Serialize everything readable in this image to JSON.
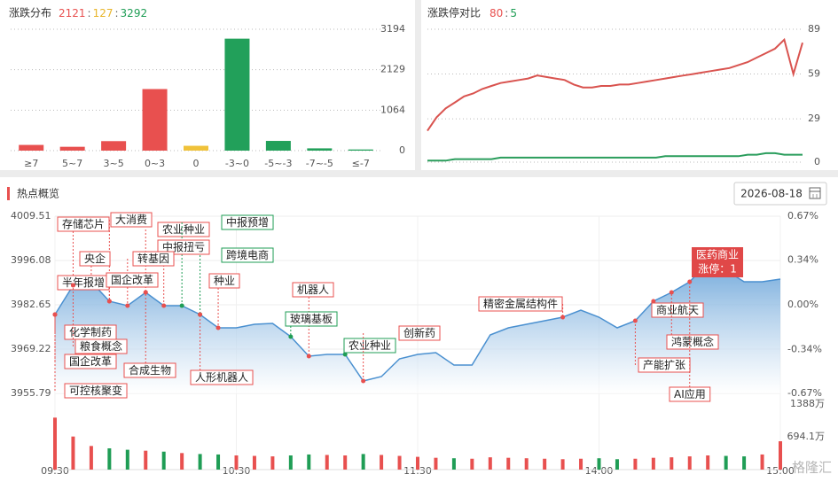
{
  "chart_data": [
    {
      "type": "bar",
      "title": "涨跌分布",
      "summary": [
        {
          "text": "2121",
          "color": "#e8504f"
        },
        {
          "text": "127",
          "color": "#e8b52a"
        },
        {
          "text": "3292",
          "color": "#1f9d55"
        }
      ],
      "separator": ":",
      "categories": [
        "≥7",
        "5~7",
        "3~5",
        "0~3",
        "0",
        "-3~0",
        "-5~-3",
        "-7~-5",
        "≤-7"
      ],
      "values": [
        150,
        101,
        250,
        1620,
        127,
        2946,
        256,
        60,
        30
      ],
      "colors": [
        "#e8504f",
        "#e8504f",
        "#e8504f",
        "#e8504f",
        "#f0c23a",
        "#22a05a",
        "#22a05a",
        "#22a05a",
        "#22a05a"
      ],
      "ylim": [
        0,
        3194
      ],
      "yticks": [
        0,
        1064,
        2129,
        3194
      ],
      "grid": true
    },
    {
      "type": "line",
      "title": "涨跌停对比",
      "summary": [
        {
          "text": "80",
          "color": "#e8504f"
        },
        {
          "text": "5",
          "color": "#1f9d55"
        }
      ],
      "separator": ":",
      "series": [
        {
          "color": "#d9534f",
          "values": [
            21,
            30,
            36,
            40,
            44,
            46,
            49,
            51,
            53,
            54,
            55,
            56,
            58,
            57,
            56,
            55,
            52,
            50,
            50,
            51,
            51,
            52,
            52,
            53,
            54,
            55,
            56,
            57,
            58,
            59,
            60,
            61,
            62,
            63,
            65,
            67,
            70,
            73,
            76,
            82,
            59,
            80
          ]
        },
        {
          "color": "#2a9d5c",
          "values": [
            1,
            1,
            1,
            2,
            2,
            2,
            2,
            2,
            3,
            3,
            3,
            3,
            3,
            3,
            3,
            3,
            3,
            3,
            3,
            3,
            3,
            3,
            3,
            3,
            3,
            3,
            4,
            4,
            4,
            4,
            4,
            4,
            4,
            4,
            4,
            5,
            5,
            6,
            6,
            5,
            5,
            5
          ]
        }
      ],
      "ylim": [
        0,
        89
      ],
      "yticks": [
        0,
        29,
        59,
        89
      ],
      "grid": true
    },
    {
      "type": "intraday",
      "title": "热点概览",
      "date": "2026-08-18",
      "series": [
        {
          "color": "#4a90d0",
          "values": [
            3979.7,
            3988.56,
            3989.63,
            3983.72,
            3982.38,
            3986.41,
            3982.38,
            3982.38,
            3979.7,
            3975.67,
            3975.67,
            3976.74,
            3977.01,
            3972.98,
            3967.07,
            3967.61,
            3967.61,
            3959.55,
            3960.89,
            3966.27,
            3967.61,
            3968.15,
            3964.39,
            3964.39,
            3973.52,
            3975.67,
            3976.74,
            3977.82,
            3978.89,
            3981.04,
            3978.89,
            3975.67,
            3977.82,
            3983.72,
            3986.41,
            3989.63,
            3995.54,
            3993.13,
            3989.63,
            3989.63,
            3990.44
          ]
        }
      ],
      "ylim": [
        3955.79,
        4009.51
      ],
      "yticks": [
        3955.79,
        3969.22,
        3982.65,
        3996.08,
        4009.51
      ],
      "y2lim": [
        -0.67,
        0.67
      ],
      "y2ticks": [
        {
          "value": -0.67,
          "label": "-0.67%"
        },
        {
          "value": -0.34,
          "label": "-0.34%"
        },
        {
          "value": 0,
          "label": "0.00%"
        },
        {
          "value": 0.34,
          "label": "0.34%"
        },
        {
          "value": 0.67,
          "label": "0.67%"
        }
      ],
      "xticks": [
        "09:30",
        "10:30",
        "11:30",
        "14:00",
        "15:00"
      ],
      "up_color": "#e8504f",
      "down_color": "#1f9d55",
      "flat_color": "#888888",
      "volume": {
        "values": [
          1100,
          700,
          500,
          450,
          420,
          400,
          380,
          350,
          330,
          320,
          300,
          290,
          280,
          300,
          320,
          310,
          300,
          330,
          310,
          290,
          270,
          250,
          240,
          230,
          260,
          250,
          240,
          230,
          220,
          230,
          240,
          220,
          230,
          250,
          260,
          280,
          300,
          290,
          280,
          320,
          600
        ],
        "ylim": [
          0,
          1388
        ],
        "yticks": [
          {
            "value": 694.1,
            "label": "694.1万"
          },
          {
            "value": 1388,
            "label": "1388万"
          }
        ]
      },
      "annotations": [
        {
          "label": "存储芯片",
          "color": "#e8504f"
        },
        {
          "label": "大消费",
          "color": "#e8504f"
        },
        {
          "label": "农业种业",
          "color": "#e8504f"
        },
        {
          "label": "中报预增",
          "color": "#1f9d55"
        },
        {
          "label": "中报扭亏",
          "color": "#e8504f"
        },
        {
          "label": "跨境电商",
          "color": "#1f9d55"
        },
        {
          "label": "央企",
          "color": "#e8504f"
        },
        {
          "label": "转基因",
          "color": "#e8504f"
        },
        {
          "label": "半年报增",
          "color": "#e8504f"
        },
        {
          "label": "国企改革",
          "color": "#e8504f"
        },
        {
          "label": "种业",
          "color": "#e8504f"
        },
        {
          "label": "机器人",
          "color": "#e8504f"
        },
        {
          "label": "化学制药",
          "color": "#e8504f"
        },
        {
          "label": "粮食概念",
          "color": "#e8504f"
        },
        {
          "label": "国企改革",
          "color": "#e8504f"
        },
        {
          "label": "可控核聚变",
          "color": "#e8504f"
        },
        {
          "label": "合成生物",
          "color": "#e8504f"
        },
        {
          "label": "人形机器人",
          "color": "#e8504f"
        },
        {
          "label": "玻璃基板",
          "color": "#1f9d55"
        },
        {
          "label": "农业种业",
          "color": "#1f9d55"
        },
        {
          "label": "创新药",
          "color": "#e8504f"
        },
        {
          "label": "精密金属结构件",
          "color": "#e8504f"
        },
        {
          "label": "商业航天",
          "color": "#e8504f"
        },
        {
          "label": "鸿蒙概念",
          "color": "#e8504f"
        },
        {
          "label": "产能扩张",
          "color": "#e8504f"
        },
        {
          "label": "AI应用",
          "color": "#e8504f"
        },
        {
          "label": "医药商业",
          "detail": "涨停：1",
          "color": "#e04848",
          "highlight": true
        }
      ],
      "watermark": "格隆汇"
    }
  ]
}
